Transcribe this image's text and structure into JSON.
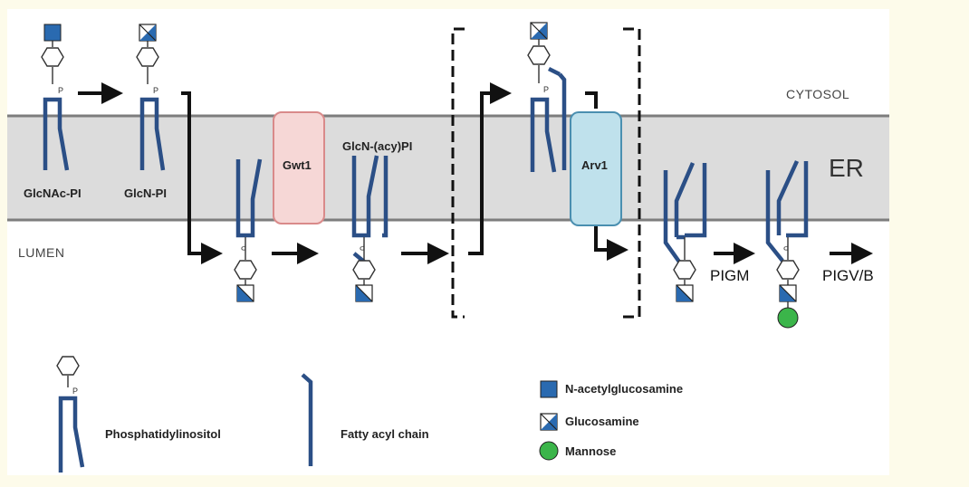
{
  "compartments": {
    "cytosol": "CYTOSOL",
    "er": "ER",
    "lumen": "LUMEN"
  },
  "intermediates": {
    "glcnac_pi": "GlcNAc-PI",
    "glcn_pi": "GlcN-PI",
    "glcn_acy_pi": "GlcN-(acy)PI"
  },
  "enzymes": {
    "gwt1": "Gwt1",
    "arv1": "Arv1"
  },
  "next_steps": {
    "pigm": "PIGM",
    "pigv_b": "PIGV/B"
  },
  "legend": {
    "phosphatidylinositol": "Phosphatidylinositol",
    "fatty_acyl_chain": "Fatty acyl chain",
    "n_acetylglucosamine": "N-acetylglucosamine",
    "glucosamine": "Glucosamine",
    "mannose": "Mannose"
  },
  "glyph_texts": {
    "phosphate": "P"
  },
  "colors": {
    "lipid_blue": "#2b4f86",
    "sugar_blue": "#2a6ab0",
    "membrane_gray": "#dcdcdc",
    "membrane_line": "#7d7d7d",
    "gwt1_fill": "#f6d7d6",
    "gwt1_border": "#d98a8a",
    "arv1_fill": "#bfe1ec",
    "arv1_border": "#4a8fb0",
    "mannose_green": "#3bb54a",
    "background": "#fdfbea"
  }
}
